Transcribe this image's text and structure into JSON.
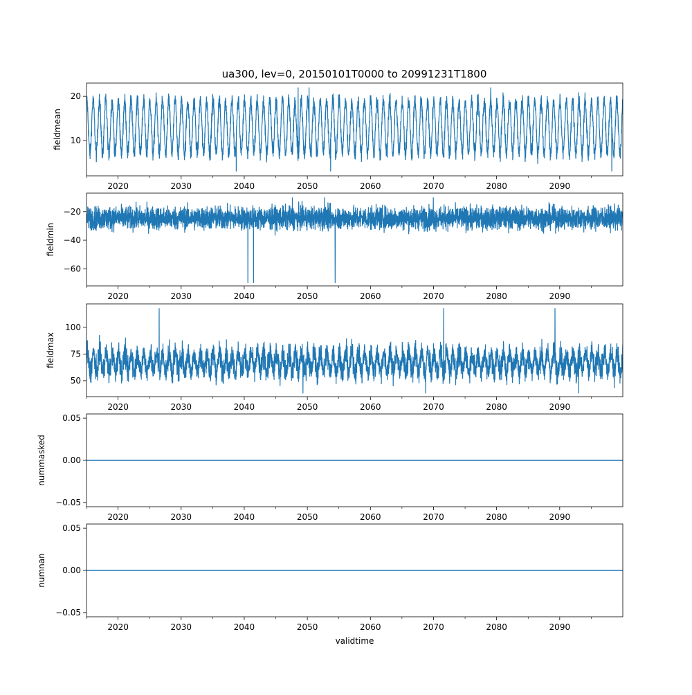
{
  "figure_title": "ua300, lev=0, 20150101T0000 to 20991231T1800",
  "colors": {
    "line": "#1f77b4",
    "axis": "#000000",
    "background": "#ffffff"
  },
  "chart_data": [
    {
      "type": "line",
      "title": "ua300, lev=0, 20150101T0000 to 20991231T1800",
      "ylabel": "fieldmean",
      "xlabel": "",
      "xlim": [
        2015,
        2100
      ],
      "ylim": [
        2.0,
        23.0
      ],
      "xticks": [
        2020,
        2030,
        2040,
        2050,
        2060,
        2070,
        2080,
        2090
      ],
      "xtick_labels": [
        "2020",
        "2030",
        "2040",
        "2050",
        "2060",
        "2070",
        "2080",
        "2090"
      ],
      "yticks": [
        10,
        20
      ],
      "ytick_labels": [
        "10",
        "20"
      ],
      "series": {
        "name": "fieldmean",
        "pattern": "seasonal_cycle",
        "cycles_per_year": 1,
        "typical_range": [
          6.0,
          20.0
        ],
        "min": 3.0,
        "max": 22.0
      }
    },
    {
      "type": "line",
      "title": "",
      "ylabel": "fieldmin",
      "xlabel": "",
      "xlim": [
        2015,
        2100
      ],
      "ylim": [
        -72,
        -7
      ],
      "xticks": [
        2020,
        2030,
        2040,
        2050,
        2060,
        2070,
        2080,
        2090
      ],
      "xtick_labels": [
        "2020",
        "2030",
        "2040",
        "2050",
        "2060",
        "2070",
        "2080",
        "2090"
      ],
      "yticks": [
        -60,
        -40,
        -20
      ],
      "ytick_labels": [
        "−60",
        "−40",
        "−20"
      ],
      "series": {
        "name": "fieldmin",
        "pattern": "noisy_band",
        "typical_range": [
          -45,
          -12
        ],
        "min": -70,
        "max": -10
      }
    },
    {
      "type": "line",
      "title": "",
      "ylabel": "fieldmax",
      "xlabel": "",
      "xlim": [
        2015,
        2100
      ],
      "ylim": [
        35,
        122
      ],
      "xticks": [
        2020,
        2030,
        2040,
        2050,
        2060,
        2070,
        2080,
        2090
      ],
      "xtick_labels": [
        "2020",
        "2030",
        "2040",
        "2050",
        "2060",
        "2070",
        "2080",
        "2090"
      ],
      "yticks": [
        50,
        75,
        100
      ],
      "ytick_labels": [
        "50",
        "75",
        "100"
      ],
      "series": {
        "name": "fieldmax",
        "pattern": "seasonal_noisy_band",
        "typical_range": [
          45,
          95
        ],
        "min": 38,
        "max": 118
      }
    },
    {
      "type": "line",
      "title": "",
      "ylabel": "nummasked",
      "xlabel": "",
      "xlim": [
        2015,
        2100
      ],
      "ylim": [
        -0.055,
        0.055
      ],
      "xticks": [
        2020,
        2030,
        2040,
        2050,
        2060,
        2070,
        2080,
        2090
      ],
      "xtick_labels": [
        "2020",
        "2030",
        "2040",
        "2050",
        "2060",
        "2070",
        "2080",
        "2090"
      ],
      "yticks": [
        -0.05,
        0.0,
        0.05
      ],
      "ytick_labels": [
        "−0.05",
        "0.00",
        "0.05"
      ],
      "series": {
        "name": "nummasked",
        "pattern": "constant",
        "value": 0.0
      }
    },
    {
      "type": "line",
      "title": "",
      "ylabel": "numnan",
      "xlabel": "validtime",
      "xlim": [
        2015,
        2100
      ],
      "ylim": [
        -0.055,
        0.055
      ],
      "xticks": [
        2020,
        2030,
        2040,
        2050,
        2060,
        2070,
        2080,
        2090
      ],
      "xtick_labels": [
        "2020",
        "2030",
        "2040",
        "2050",
        "2060",
        "2070",
        "2080",
        "2090"
      ],
      "yticks": [
        -0.05,
        0.0,
        0.05
      ],
      "ytick_labels": [
        "−0.05",
        "0.00",
        "0.05"
      ],
      "series": {
        "name": "numnan",
        "pattern": "constant",
        "value": 0.0
      }
    }
  ]
}
